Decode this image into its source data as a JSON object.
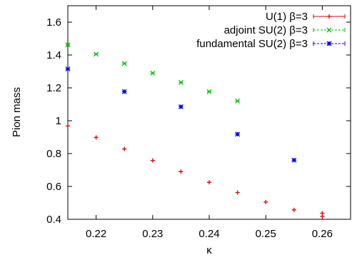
{
  "chart_data": {
    "type": "scatter",
    "title": "",
    "xlabel": "κ",
    "ylabel": "Pion mass",
    "xlim": [
      0.215,
      0.265
    ],
    "ylim": [
      0.4,
      1.7
    ],
    "x_ticks": [
      "0.22",
      "0.23",
      "0.24",
      "0.25",
      "0.26"
    ],
    "x_tick_values": [
      0.22,
      0.23,
      0.24,
      0.25,
      0.26
    ],
    "y_ticks": [
      "0.4",
      "0.6",
      "0.8",
      "1",
      "1.2",
      "1.4",
      "1.6"
    ],
    "y_tick_values": [
      0.4,
      0.6,
      0.8,
      1.0,
      1.2,
      1.4,
      1.6
    ],
    "grid": false,
    "legend_position": "top-right",
    "series": [
      {
        "name": "U(1) β=3",
        "color": "#e00000",
        "marker": "plus",
        "points": [
          {
            "x": 0.215,
            "y": 0.968
          },
          {
            "x": 0.22,
            "y": 0.898
          },
          {
            "x": 0.225,
            "y": 0.828
          },
          {
            "x": 0.23,
            "y": 0.758
          },
          {
            "x": 0.235,
            "y": 0.69
          },
          {
            "x": 0.24,
            "y": 0.625
          },
          {
            "x": 0.245,
            "y": 0.563
          },
          {
            "x": 0.25,
            "y": 0.505
          },
          {
            "x": 0.255,
            "y": 0.457
          },
          {
            "x": 0.26,
            "y": 0.437
          },
          {
            "x": 0.26,
            "y": 0.418
          }
        ]
      },
      {
        "name": "adjoint SU(2) β=3",
        "color": "#00c000",
        "marker": "cross",
        "points": [
          {
            "x": 0.215,
            "y": 1.462
          },
          {
            "x": 0.22,
            "y": 1.405
          },
          {
            "x": 0.225,
            "y": 1.348
          },
          {
            "x": 0.23,
            "y": 1.29
          },
          {
            "x": 0.235,
            "y": 1.233
          },
          {
            "x": 0.24,
            "y": 1.177
          },
          {
            "x": 0.245,
            "y": 1.12
          }
        ]
      },
      {
        "name": "fundamental SU(2) β=3",
        "color": "#0000e0",
        "marker": "star",
        "points": [
          {
            "x": 0.215,
            "y": 1.315
          },
          {
            "x": 0.225,
            "y": 1.177
          },
          {
            "x": 0.235,
            "y": 1.085
          },
          {
            "x": 0.245,
            "y": 0.918
          },
          {
            "x": 0.255,
            "y": 0.76
          }
        ]
      }
    ]
  }
}
